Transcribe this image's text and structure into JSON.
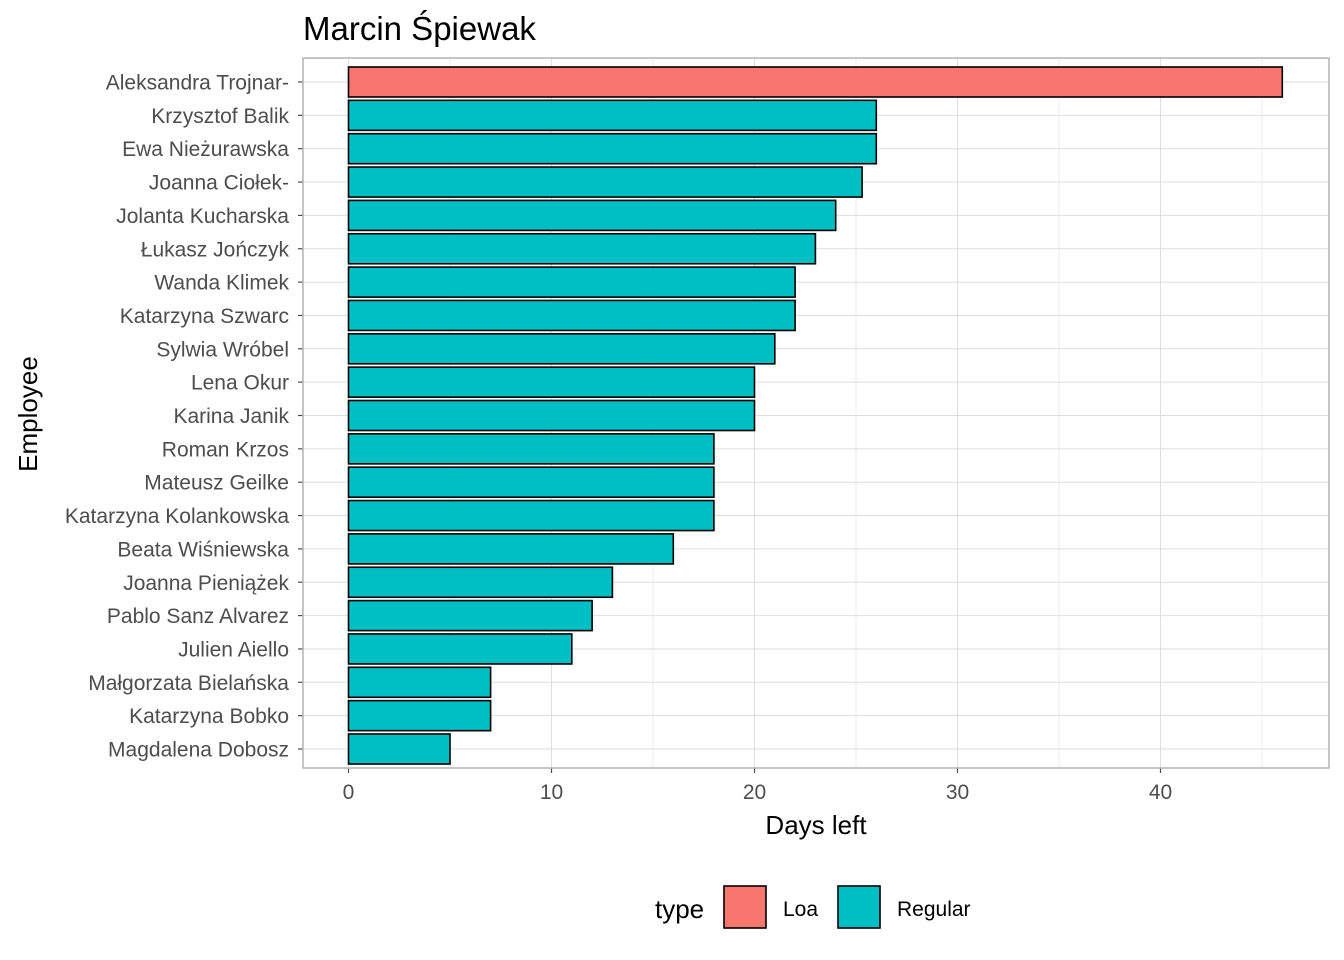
{
  "chart_data": {
    "type": "bar",
    "orientation": "horizontal",
    "title": "Marcin Śpiewak",
    "xlabel": "Days left",
    "ylabel": "Employee",
    "xlim": [
      0,
      48
    ],
    "xticks": [
      0,
      10,
      20,
      30,
      40
    ],
    "grid": true,
    "legend_position": "bottom",
    "legend_title": "type",
    "legend": [
      {
        "name": "Loa",
        "color": "#F8766D"
      },
      {
        "name": "Regular",
        "color": "#00BFC4"
      }
    ],
    "bars": [
      {
        "category": "Aleksandra Trojnar-",
        "value": 46,
        "type": "Loa"
      },
      {
        "category": "Krzysztof Balik",
        "value": 26,
        "type": "Regular"
      },
      {
        "category": "Ewa Nieżurawska",
        "value": 26,
        "type": "Regular"
      },
      {
        "category": "Joanna Ciołek-",
        "value": 25.3,
        "type": "Regular"
      },
      {
        "category": "Jolanta Kucharska",
        "value": 24,
        "type": "Regular"
      },
      {
        "category": "Łukasz Jończyk",
        "value": 23,
        "type": "Regular"
      },
      {
        "category": "Wanda Klimek",
        "value": 22,
        "type": "Regular"
      },
      {
        "category": "Katarzyna Szwarc",
        "value": 22,
        "type": "Regular"
      },
      {
        "category": "Sylwia Wróbel",
        "value": 21,
        "type": "Regular"
      },
      {
        "category": "Lena Okur",
        "value": 20,
        "type": "Regular"
      },
      {
        "category": "Karina Janik",
        "value": 20,
        "type": "Regular"
      },
      {
        "category": "Roman Krzos",
        "value": 18,
        "type": "Regular"
      },
      {
        "category": "Mateusz Geilke",
        "value": 18,
        "type": "Regular"
      },
      {
        "category": "Katarzyna Kolankowska",
        "value": 18,
        "type": "Regular"
      },
      {
        "category": "Beata Wiśniewska",
        "value": 16,
        "type": "Regular"
      },
      {
        "category": "Joanna Pieniążek",
        "value": 13,
        "type": "Regular"
      },
      {
        "category": "Pablo Sanz Alvarez",
        "value": 12,
        "type": "Regular"
      },
      {
        "category": "Julien Aiello",
        "value": 11,
        "type": "Regular"
      },
      {
        "category": "Małgorzata Bielańska",
        "value": 7,
        "type": "Regular"
      },
      {
        "category": "Katarzyna Bobko",
        "value": 7,
        "type": "Regular"
      },
      {
        "category": "Magdalena Dobosz",
        "value": 5,
        "type": "Regular"
      }
    ]
  }
}
